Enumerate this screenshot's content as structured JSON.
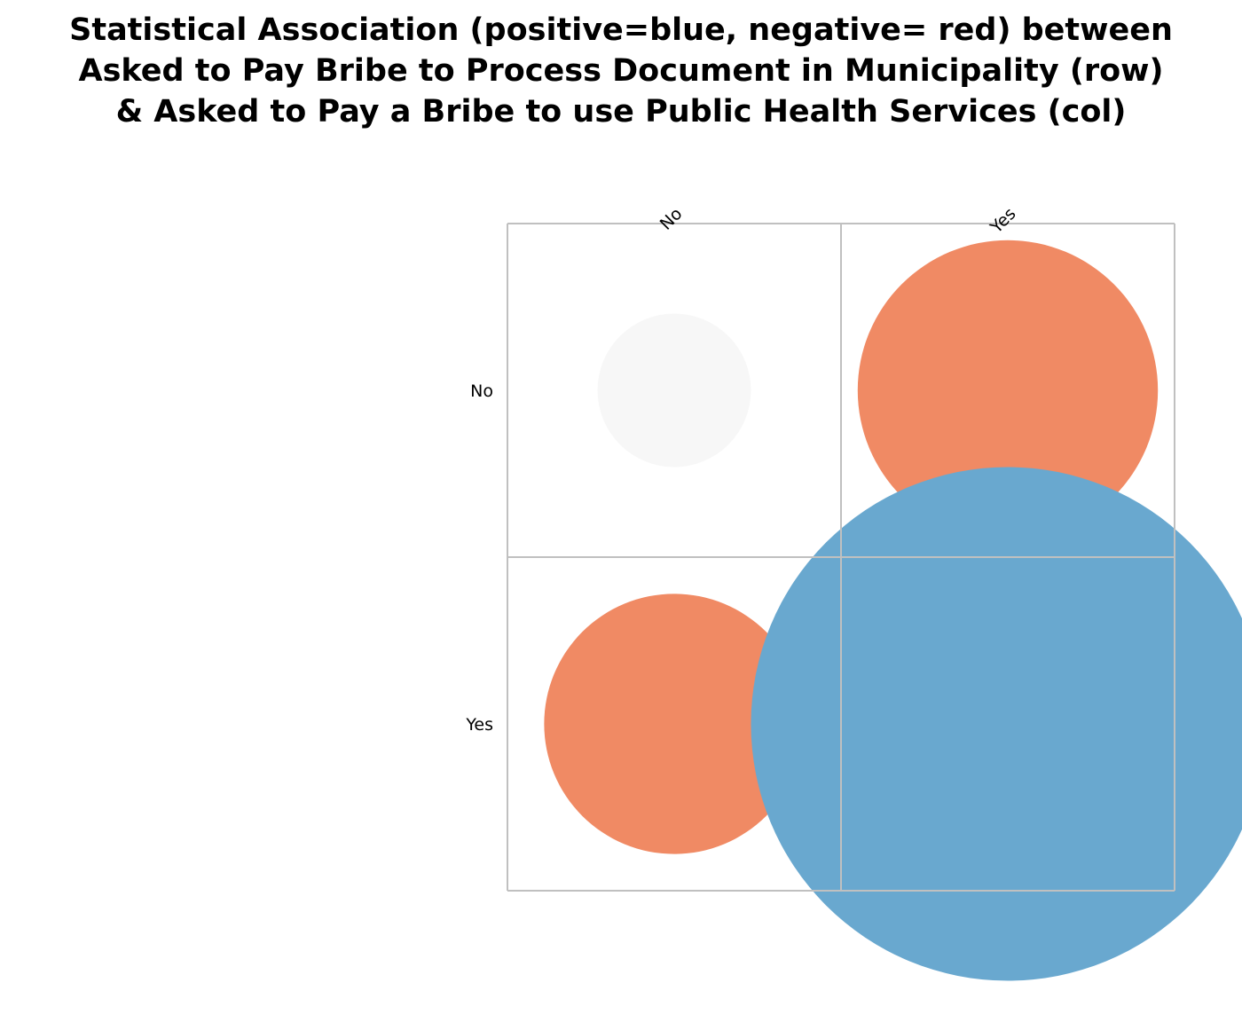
{
  "chart_data": {
    "type": "bubble-matrix",
    "title_lines": [
      "Statistical Association (positive=blue, negative= red) between",
      "Asked to Pay Bribe to Process Document in Municipality (row)",
      "& Asked to Pay a Bribe to use Public Health Services (col)"
    ],
    "row_labels": [
      "No",
      "Yes"
    ],
    "col_labels": [
      "No",
      "Yes"
    ],
    "cells": [
      {
        "row": 0,
        "col": 0,
        "value": 0.23,
        "sign": "neutral",
        "color": "#f7f7f7"
      },
      {
        "row": 0,
        "col": 1,
        "value": 0.45,
        "sign": "negative",
        "color": "#f08a64"
      },
      {
        "row": 1,
        "col": 0,
        "value": 0.39,
        "sign": "negative",
        "color": "#f08a64"
      },
      {
        "row": 1,
        "col": 1,
        "value": 0.77,
        "sign": "positive",
        "color": "#69a8cf"
      }
    ],
    "legend": {
      "positive": "blue",
      "negative": "red"
    },
    "grid": true
  }
}
